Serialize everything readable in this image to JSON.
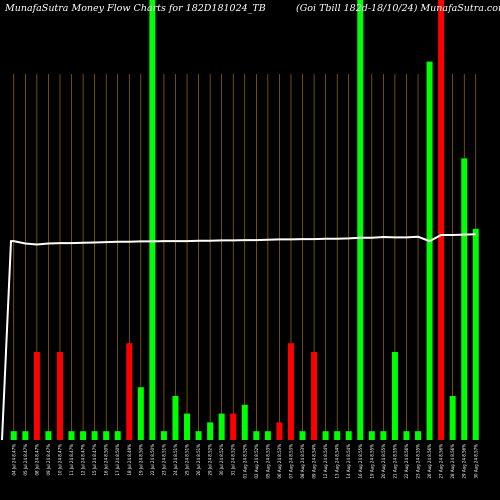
{
  "chart_data": {
    "type": "bar",
    "title_left": "MunafaSutra  Money Flow  Charts for 182D181024_TB",
    "title_right": "(Goi   Tbill 182d-18/10/24) MunafaSutra.com",
    "colors": {
      "background": "#000000",
      "up": "#00ff00",
      "down": "#ff0000",
      "grid": "#c08000",
      "line": "#ffffff",
      "text": "#ffffff"
    },
    "ylim": [
      0,
      100
    ],
    "line_ylim": [
      0,
      100
    ],
    "categories": [
      "04 Jul 24 8.47%",
      "05 Jul 24 8.47%",
      "08 Jul 24 8.47%",
      "09 Jul 24 8.47%",
      "10 Jul 24 8.47%",
      "11 Jul 24 8.47%",
      "12 Jul 24 8.47%",
      "15 Jul 24 8.47%",
      "16 Jul 24 8.50%",
      "17 Jul 24 8.50%",
      "18 Jul 24 8.49%",
      "19 Jul 24 8.50%",
      "22 Jul 24 8.50%",
      "23 Jul 24 8.51%",
      "24 Jul 24 8.51%",
      "25 Jul 24 8.51%",
      "26 Jul 24 8.51%",
      "29 Jul 24 8.52%",
      "30 Jul 24 8.52%",
      "31 Jul 24 8.52%",
      "01 Aug 24 8.52%",
      "02 Aug 24 8.52%",
      "05 Aug 24 8.53%",
      "06 Aug 24 8.53%",
      "07 Aug 24 8.53%",
      "08 Aug 24 8.53%",
      "09 Aug 24 8.54%",
      "12 Aug 24 8.54%",
      "13 Aug 24 8.54%",
      "14 Aug 24 8.54%",
      "16 Aug 24 8.55%",
      "19 Aug 24 8.55%",
      "20 Aug 24 8.55%",
      "21 Aug 24 8.55%",
      "22 Aug 24 8.56%",
      "23 Aug 24 8.55%",
      "26 Aug 24 8.56%",
      "27 Aug 24 8.56%",
      "28 Aug 24 8.56%",
      "29 Aug 24 8.56%",
      "30 Aug 24 8.57%"
    ],
    "values": [
      2,
      2,
      20,
      2,
      20,
      2,
      2,
      2,
      2,
      2,
      22,
      12,
      100,
      2,
      10,
      6,
      2,
      4,
      6,
      6,
      8,
      2,
      2,
      4,
      22,
      2,
      20,
      2,
      2,
      2,
      100,
      2,
      2,
      20,
      2,
      2,
      86,
      100,
      10,
      64,
      48
    ],
    "directions": [
      "up",
      "up",
      "down",
      "up",
      "down",
      "up",
      "up",
      "up",
      "up",
      "up",
      "down",
      "up",
      "up",
      "up",
      "up",
      "up",
      "up",
      "up",
      "up",
      "down",
      "up",
      "up",
      "up",
      "down",
      "down",
      "up",
      "down",
      "up",
      "up",
      "up",
      "up",
      "up",
      "up",
      "up",
      "up",
      "up",
      "up",
      "down",
      "up",
      "up",
      "up"
    ],
    "line": [
      58.5,
      57.8,
      57.5,
      57.8,
      57.9,
      57.9,
      58.0,
      58.1,
      58.2,
      58.3,
      58.3,
      58.4,
      58.4,
      58.5,
      58.5,
      58.5,
      58.6,
      58.6,
      58.7,
      58.7,
      58.8,
      58.8,
      58.9,
      59.0,
      59.0,
      59.1,
      59.1,
      59.2,
      59.2,
      59.3,
      59.5,
      59.5,
      59.7,
      59.6,
      59.6,
      59.8,
      58.5,
      60.3,
      60.3,
      60.4,
      60.5
    ],
    "line_start": 58.5
  }
}
